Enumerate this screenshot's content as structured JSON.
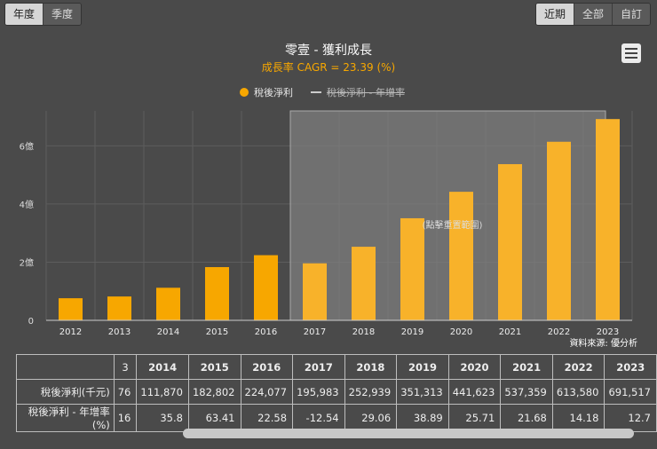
{
  "period_tabs": [
    {
      "label": "年度",
      "active": true
    },
    {
      "label": "季度",
      "active": false
    }
  ],
  "range_tabs": [
    {
      "label": "近期",
      "active": true
    },
    {
      "label": "全部",
      "active": false
    },
    {
      "label": "自訂",
      "active": false
    }
  ],
  "chart_data": {
    "type": "bar",
    "title": "零壹 - 獲利成長",
    "subtitle": "成長率 CAGR = 23.39 (%)",
    "categories": [
      "2012",
      "2013",
      "2014",
      "2015",
      "2016",
      "2017",
      "2018",
      "2019",
      "2020",
      "2021",
      "2022",
      "2023"
    ],
    "series": [
      {
        "name": "稅後淨利",
        "unit": "億",
        "values": [
          0.76,
          0.82,
          1.12,
          1.83,
          2.24,
          1.96,
          2.53,
          3.51,
          4.42,
          5.37,
          6.14,
          6.92
        ],
        "color": "#f7a700"
      },
      {
        "name": "稅後淨利 - 年增率",
        "hidden": true
      }
    ],
    "y_ticks": [
      "0",
      "2億",
      "4億",
      "6億"
    ],
    "ylim": [
      0,
      7.2
    ],
    "highlight_range": [
      "2017",
      "2023"
    ],
    "highlight_label": "(點擊重置範圍)",
    "source": "資料來源: 優分析"
  },
  "table": {
    "headers": [
      "3",
      "2014",
      "2015",
      "2016",
      "2017",
      "2018",
      "2019",
      "2020",
      "2021",
      "2022",
      "2023"
    ],
    "rows": [
      {
        "label": "稅後淨利(千元)",
        "cells": [
          "76",
          "111,870",
          "182,802",
          "224,077",
          "195,983",
          "252,939",
          "351,313",
          "441,623",
          "537,359",
          "613,580",
          "691,517"
        ]
      },
      {
        "label": "稅後淨利 - 年增率(%)",
        "cells": [
          "16",
          "35.8",
          "63.41",
          "22.58",
          "-12.54",
          "29.06",
          "38.89",
          "25.71",
          "21.68",
          "14.18",
          "12.7"
        ]
      }
    ]
  }
}
